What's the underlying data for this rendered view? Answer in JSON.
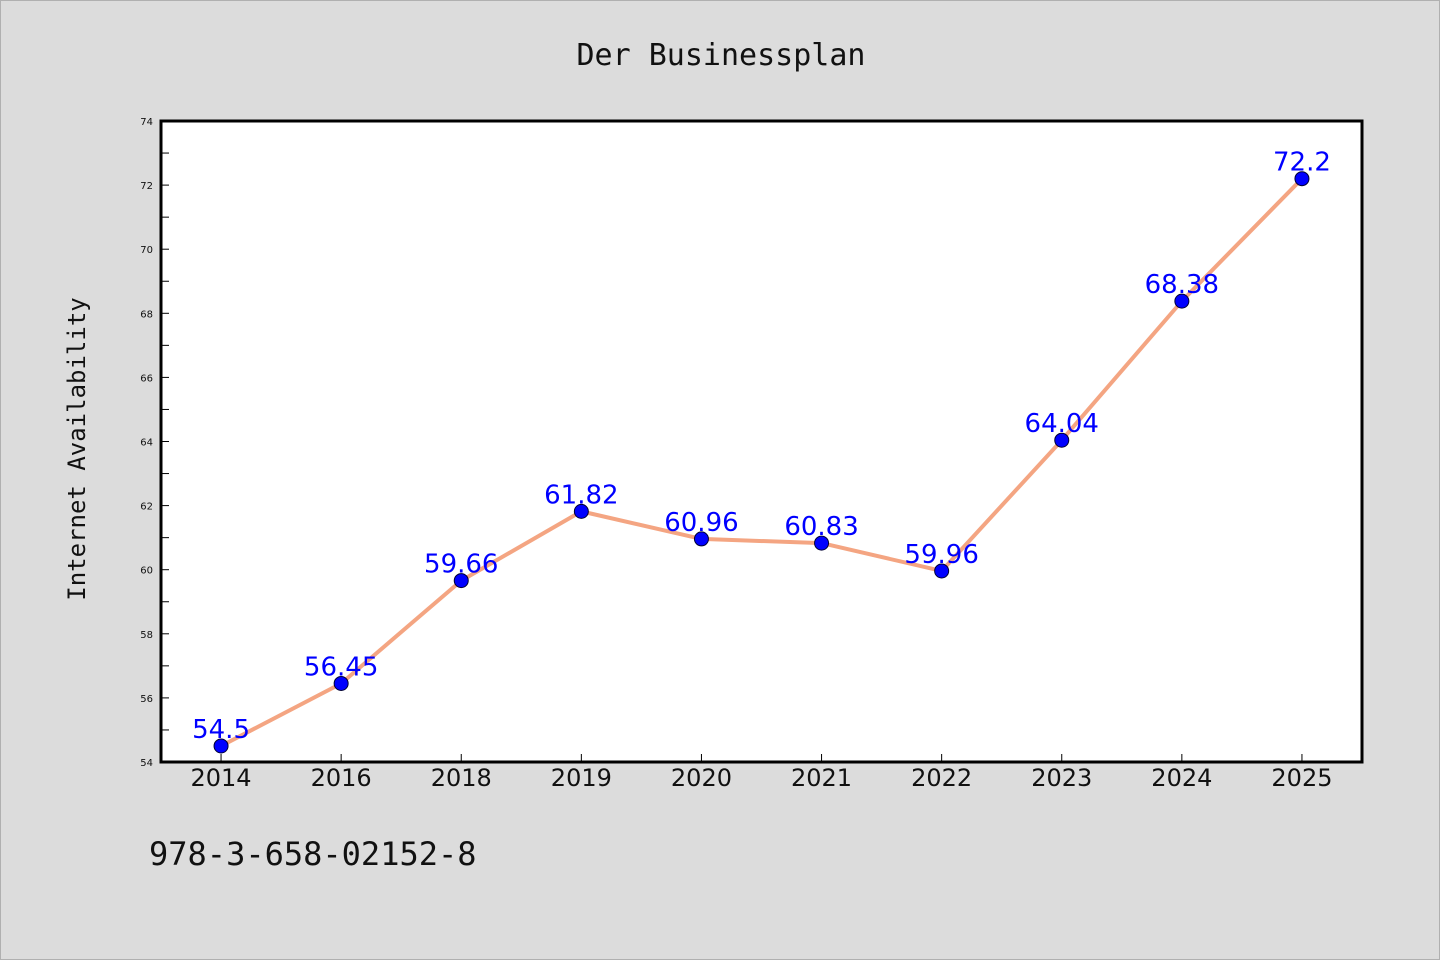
{
  "chart_data": {
    "type": "line",
    "title": "Der Businessplan",
    "xlabel": "",
    "ylabel": "Internet Availability",
    "categories": [
      "2014",
      "2016",
      "2018",
      "2019",
      "2020",
      "2021",
      "2022",
      "2023",
      "2024",
      "2025"
    ],
    "series": [
      {
        "values": [
          54.5,
          56.45,
          59.66,
          61.82,
          60.96,
          60.83,
          59.96,
          64.04,
          68.38,
          72.2
        ],
        "labels": [
          "54.5",
          "56.45",
          "59.66",
          "61.82",
          "60.96",
          "60.83",
          "59.96",
          "64.04",
          "68.38",
          "72.2"
        ],
        "line_color": "#f4a582",
        "marker_color": "#0000ff"
      }
    ],
    "ylim": [
      54,
      74
    ],
    "yticks": [
      "54",
      "56",
      "58",
      "60",
      "62",
      "64",
      "66",
      "68",
      "70",
      "72",
      "74"
    ],
    "grid": false,
    "legend": "none",
    "label_color": "#0000ff"
  },
  "footnote": "978-3-658-02152-8"
}
